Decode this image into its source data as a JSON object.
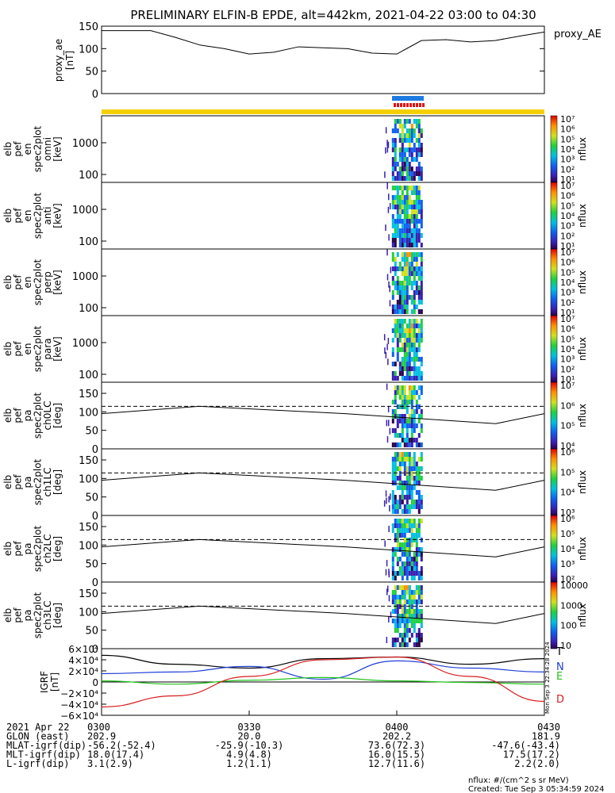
{
  "title": "PRELIMINARY ELFIN-B EPDE, alt=442km, 2021-04-22 03:00 to 04:30",
  "ae_panel": {
    "ylabel_line1": "proxy_ae",
    "ylabel_line2": "[nT]",
    "legend": "proxy_AE",
    "yticks": [
      "150",
      "100",
      "50",
      "0"
    ]
  },
  "energy_panels": [
    {
      "label_lines": [
        "elb",
        "pef",
        "en",
        "spec2plot",
        "omni",
        "[keV]"
      ],
      "yticks": [
        "1000",
        "100"
      ],
      "cbar_ticks": [
        "10⁷",
        "10⁶",
        "10⁵",
        "10⁴",
        "10³",
        "10²",
        "10¹"
      ],
      "cbar_label": "nflux"
    },
    {
      "label_lines": [
        "elb",
        "pef",
        "en",
        "spec2plot",
        "anti",
        "[keV]"
      ],
      "yticks": [
        "1000",
        "100"
      ],
      "cbar_ticks": [
        "10⁷",
        "10⁶",
        "10⁵",
        "10⁴",
        "10³",
        "10²",
        "10¹"
      ],
      "cbar_label": "nflux"
    },
    {
      "label_lines": [
        "elb",
        "pef",
        "en",
        "spec2plot",
        "perp",
        "[keV]"
      ],
      "yticks": [
        "1000",
        "100"
      ],
      "cbar_ticks": [
        "10⁷",
        "10⁶",
        "10⁵",
        "10⁴",
        "10³",
        "10²",
        "10¹"
      ],
      "cbar_label": "nflux"
    },
    {
      "label_lines": [
        "elb",
        "pef",
        "en",
        "spec2plot",
        "para",
        "[keV]"
      ],
      "yticks": [
        "1000",
        "100"
      ],
      "cbar_ticks": [
        "10⁷",
        "10⁶",
        "10⁵",
        "10⁴",
        "10³",
        "10²",
        "10¹"
      ],
      "cbar_label": "nflux"
    }
  ],
  "pa_panels": [
    {
      "label_lines": [
        "elb",
        "pef",
        "pa",
        "spec2plot",
        "ch0LC",
        "[deg]"
      ],
      "yticks": [
        "150",
        "100",
        "50",
        "0"
      ],
      "cbar_ticks": [
        "10⁷",
        "10⁶",
        "10⁵",
        "10⁴"
      ],
      "cbar_label": "nflux"
    },
    {
      "label_lines": [
        "elb",
        "pef",
        "pa",
        "spec2plot",
        "ch1LC",
        "[deg]"
      ],
      "yticks": [
        "150",
        "100",
        "50",
        "0"
      ],
      "cbar_ticks": [
        "10⁶",
        "10⁵",
        "10⁴",
        "10³"
      ],
      "cbar_label": "nflux"
    },
    {
      "label_lines": [
        "elb",
        "pef",
        "pa",
        "spec2plot",
        "ch2LC",
        "[deg]"
      ],
      "yticks": [
        "150",
        "100",
        "50",
        "0"
      ],
      "cbar_ticks": [
        "10⁶",
        "10⁵",
        "10⁴",
        "10³",
        "10²"
      ],
      "cbar_label": "nflux"
    },
    {
      "label_lines": [
        "elb",
        "pef",
        "pa",
        "spec2plot",
        "ch3LC",
        "[deg]"
      ],
      "yticks": [
        "150",
        "100",
        "50",
        "0"
      ],
      "cbar_ticks": [
        "10000",
        "1000",
        "100",
        "10"
      ],
      "cbar_label": "nflux"
    }
  ],
  "igrf_panel": {
    "ylabel_line1": "IGRF",
    "ylabel_line2": "[nT]",
    "yticks": [
      "6×10⁴",
      "4×10⁴",
      "2×10⁴",
      "0",
      "−2×10⁴",
      "−4×10⁴",
      "−6×10⁴"
    ],
    "legend": [
      {
        "name": "T",
        "color": "#000000"
      },
      {
        "name": "N",
        "color": "#1f3fd6"
      },
      {
        "name": "E",
        "color": "#22c41a"
      },
      {
        "name": "D",
        "color": "#d61e1e"
      }
    ]
  },
  "side_stamp": "Mon Sep  3 22:34:28 2024",
  "footer": {
    "columns": [
      "0300",
      "0330",
      "0400",
      "0430"
    ],
    "rows": [
      {
        "label": "2021 Apr 22",
        "values": [
          "0300",
          "0330",
          "0400",
          "0430"
        ]
      },
      {
        "label": "GLON (east)",
        "values": [
          "202.9",
          "20.0",
          "202.2",
          "181.9"
        ]
      },
      {
        "label": "MLAT-igrf(dip)",
        "values": [
          "-56.2(-52.4)",
          "-25.9(-10.3)",
          "73.6(72.3)",
          "-47.6(-43.4)"
        ]
      },
      {
        "label": "MLT-igrf(dip)",
        "values": [
          "18.0(17.4)",
          "4.9(4.8)",
          "16.0(15.5)",
          "17.5(17.2)"
        ]
      },
      {
        "label": "L-igrf(dip)",
        "values": [
          "3.1(2.9)",
          "1.2(1.1)",
          "12.7(11.6)",
          "2.2(2.0)"
        ]
      }
    ],
    "units_note": "nflux: #/(cm^2 s sr MeV)",
    "created": "Created: Tue Sep  3 05:34:59 2024"
  },
  "chart_data": {
    "type": "multi-panel time series with spectrograms",
    "x_range": [
      "2021-04-22 03:00",
      "2021-04-22 04:30"
    ],
    "proxy_ae": {
      "ylim": [
        0,
        150
      ],
      "x": [
        "03:00",
        "03:05",
        "03:10",
        "03:15",
        "03:20",
        "03:25",
        "03:30",
        "03:35",
        "03:40",
        "03:45",
        "03:50",
        "03:55",
        "04:00",
        "04:05",
        "04:10",
        "04:15",
        "04:20",
        "04:25",
        "04:30"
      ],
      "values": [
        140,
        140,
        140,
        125,
        108,
        100,
        88,
        92,
        104,
        102,
        100,
        90,
        88,
        118,
        120,
        115,
        118,
        128,
        137
      ]
    },
    "science_zone_bars": [
      {
        "color": "#1e7be0",
        "start": "04:00",
        "end": "04:05"
      },
      {
        "color": "#e01414",
        "start": "04:00",
        "end": "04:05"
      }
    ],
    "spectrogram_activity_window": [
      "03:59",
      "04:05"
    ],
    "pa_reference_lines": {
      "ylim": [
        0,
        180
      ],
      "dashed_deg": 115,
      "solid_deg": [
        95,
        115,
        95,
        68,
        95
      ]
    },
    "igrf": {
      "ylim": [
        -60000,
        60000
      ],
      "x": [
        "03:00",
        "03:15",
        "03:30",
        "03:45",
        "04:00",
        "04:15",
        "04:30"
      ],
      "series": [
        {
          "name": "T",
          "values": [
            48000,
            32000,
            25000,
            42000,
            45000,
            32000,
            42000
          ]
        },
        {
          "name": "N",
          "values": [
            15000,
            18000,
            28000,
            5000,
            38000,
            25000,
            18000
          ]
        },
        {
          "name": "E",
          "values": [
            2000,
            -4000,
            3000,
            8000,
            2000,
            -1000,
            -4000
          ]
        },
        {
          "name": "D",
          "values": [
            -45000,
            -25000,
            10000,
            40000,
            45000,
            10000,
            -35000
          ]
        }
      ]
    }
  }
}
